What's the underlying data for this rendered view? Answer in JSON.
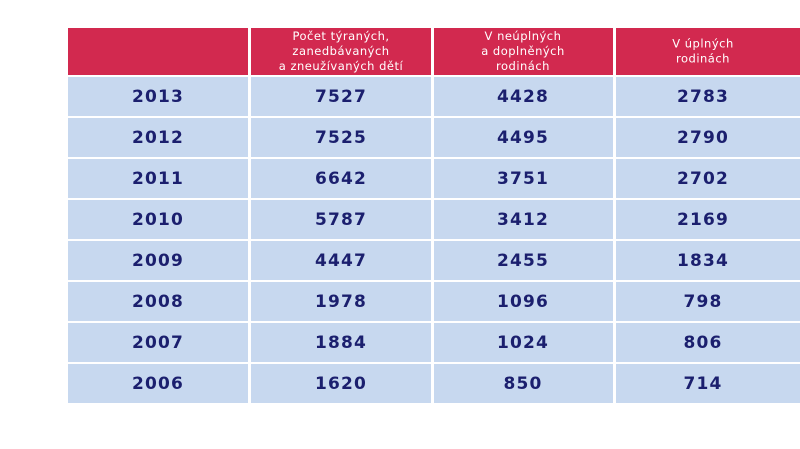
{
  "table": {
    "header": [
      {
        "lines": [
          "Počet týraných,",
          "zanedbávaných",
          "a zneužívaných dětí"
        ]
      },
      {
        "lines": [
          "V neúplných",
          "a doplněných",
          "rodinách"
        ]
      },
      {
        "lines": [
          "V úplných",
          "rodinách"
        ]
      }
    ],
    "rows": [
      [
        "2013",
        "7527",
        "4428",
        "2783"
      ],
      [
        "2012",
        "7525",
        "4495",
        "2790"
      ],
      [
        "2011",
        "6642",
        "3751",
        "2702"
      ],
      [
        "2010",
        "5787",
        "3412",
        "2169"
      ],
      [
        "2009",
        "4447",
        "2455",
        "1834"
      ],
      [
        "2008",
        "1978",
        "1096",
        "798"
      ],
      [
        "2007",
        "1884",
        "1024",
        "806"
      ],
      [
        "2006",
        "1620",
        "850",
        "714"
      ]
    ]
  }
}
